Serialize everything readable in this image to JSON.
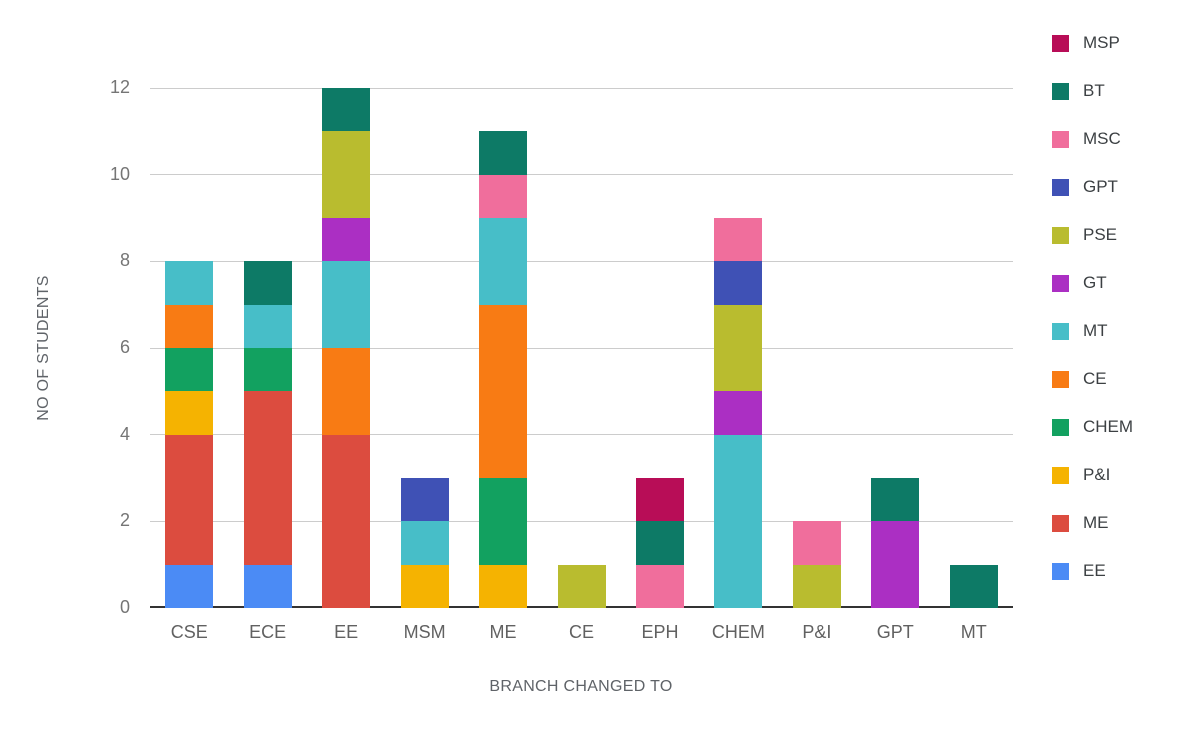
{
  "chart_data": {
    "type": "bar",
    "stacked": true,
    "title": "",
    "xlabel": "BRANCH CHANGED TO",
    "ylabel": "NO OF STUDENTS",
    "categories": [
      "CSE",
      "ECE",
      "EE",
      "MSM",
      "ME",
      "CE",
      "EPH",
      "CHEM",
      "P&I",
      "GPT",
      "MT"
    ],
    "yticks": [
      0,
      2,
      4,
      6,
      8,
      10,
      12
    ],
    "ylim": [
      0,
      12
    ],
    "grid": true,
    "legend_position": "right",
    "legend_order_top_to_bottom": [
      "MSP",
      "BT",
      "MSC",
      "GPT",
      "PSE",
      "GT",
      "MT",
      "CE",
      "CHEM",
      "P&I",
      "ME",
      "EE"
    ],
    "series": [
      {
        "name": "EE",
        "color": "#4b8bf5",
        "values": [
          1,
          1,
          0,
          0,
          0,
          0,
          0,
          0,
          0,
          0,
          0
        ]
      },
      {
        "name": "ME",
        "color": "#dc4c3f",
        "values": [
          3,
          4,
          4,
          0,
          0,
          0,
          0,
          0,
          0,
          0,
          0
        ]
      },
      {
        "name": "P&I",
        "color": "#f5b301",
        "values": [
          1,
          0,
          0,
          1,
          1,
          0,
          0,
          0,
          0,
          0,
          0
        ]
      },
      {
        "name": "CHEM",
        "color": "#12a160",
        "values": [
          1,
          1,
          0,
          0,
          2,
          0,
          0,
          0,
          0,
          0,
          0
        ]
      },
      {
        "name": "CE",
        "color": "#f87b14",
        "values": [
          1,
          0,
          2,
          0,
          4,
          0,
          0,
          0,
          0,
          0,
          0
        ]
      },
      {
        "name": "MT",
        "color": "#47bec8",
        "values": [
          1,
          1,
          2,
          1,
          2,
          0,
          0,
          4,
          0,
          0,
          0
        ]
      },
      {
        "name": "GT",
        "color": "#ab2fc3",
        "values": [
          0,
          0,
          1,
          0,
          0,
          0,
          0,
          1,
          0,
          2,
          0
        ]
      },
      {
        "name": "PSE",
        "color": "#b9bc2f",
        "values": [
          0,
          0,
          2,
          0,
          0,
          1,
          0,
          2,
          1,
          0,
          0
        ]
      },
      {
        "name": "GPT",
        "color": "#3f51b5",
        "values": [
          0,
          0,
          0,
          1,
          0,
          0,
          0,
          1,
          0,
          0,
          0
        ]
      },
      {
        "name": "MSC",
        "color": "#f06e9c",
        "values": [
          0,
          0,
          0,
          0,
          1,
          0,
          1,
          1,
          1,
          0,
          0
        ]
      },
      {
        "name": "BT",
        "color": "#0d7a66",
        "values": [
          0,
          1,
          1,
          0,
          1,
          0,
          1,
          0,
          0,
          1,
          1
        ]
      },
      {
        "name": "MSP",
        "color": "#b80d57",
        "values": [
          0,
          0,
          0,
          0,
          0,
          0,
          1,
          0,
          0,
          0,
          0
        ]
      }
    ],
    "totals": {
      "CSE": 8,
      "ECE": 8,
      "EE": 12,
      "MSM": 3,
      "ME": 11,
      "CE": 1,
      "EPH": 3,
      "CHEM": 9,
      "P&I": 2,
      "GPT": 3,
      "MT": 1
    }
  }
}
